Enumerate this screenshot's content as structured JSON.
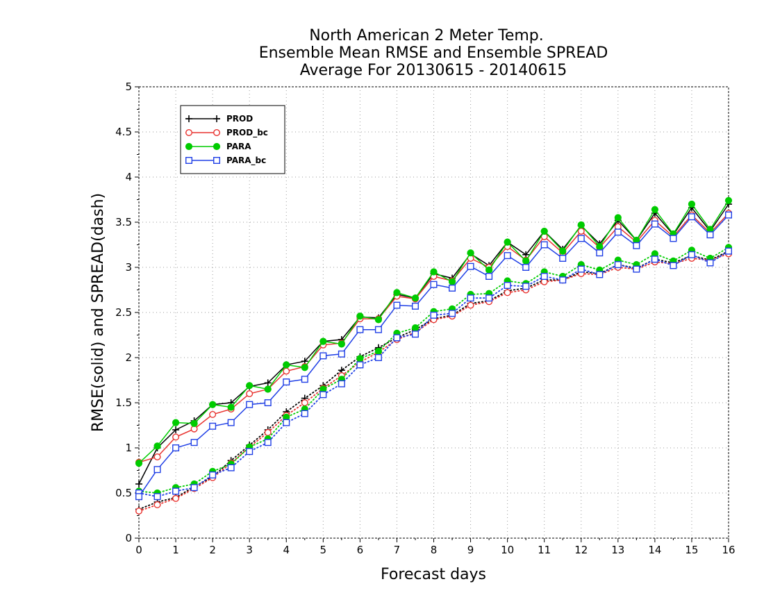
{
  "chart_data": {
    "type": "line",
    "title_lines": [
      "North American 2 Meter Temp.",
      "Ensemble Mean RMSE and Ensemble SPREAD",
      "Average For 20130615 - 20140615"
    ],
    "xlabel": "Forecast days",
    "ylabel": "RMSE(solid) and SPREAD(dash)",
    "xlim": [
      0,
      16
    ],
    "ylim": [
      0,
      5
    ],
    "x_ticks": [
      "0",
      "1",
      "2",
      "3",
      "4",
      "5",
      "6",
      "7",
      "8",
      "9",
      "10",
      "11",
      "12",
      "13",
      "14",
      "15",
      "16"
    ],
    "y_ticks": [
      "0",
      "0.5",
      "1",
      "1.5",
      "2",
      "2.5",
      "3",
      "3.5",
      "4",
      "4.5",
      "5"
    ],
    "grid": true,
    "legend_position": "top-left",
    "x": [
      0,
      0.5,
      1,
      1.5,
      2,
      2.5,
      3,
      3.5,
      4,
      4.5,
      5,
      5.5,
      6,
      6.5,
      7,
      7.5,
      8,
      8.5,
      9,
      9.5,
      10,
      10.5,
      11,
      11.5,
      12,
      12.5,
      13,
      13.5,
      14,
      14.5,
      15,
      15.5,
      16
    ],
    "series": [
      {
        "name": "PROD",
        "color": "#000000",
        "marker": "plus",
        "rmse": [
          0.6,
          1.0,
          1.2,
          1.3,
          1.48,
          1.5,
          1.68,
          1.72,
          1.92,
          1.96,
          2.18,
          2.2,
          2.45,
          2.44,
          2.7,
          2.66,
          2.93,
          2.88,
          3.15,
          3.02,
          3.28,
          3.14,
          3.4,
          3.2,
          3.46,
          3.26,
          3.52,
          3.3,
          3.6,
          3.36,
          3.66,
          3.4,
          3.7
        ],
        "spread": [
          0.32,
          0.4,
          0.45,
          0.57,
          0.68,
          0.86,
          1.03,
          1.2,
          1.4,
          1.55,
          1.69,
          1.86,
          2.01,
          2.11,
          2.22,
          2.31,
          2.43,
          2.47,
          2.6,
          2.63,
          2.74,
          2.77,
          2.86,
          2.86,
          2.95,
          2.93,
          3.03,
          2.99,
          3.09,
          3.05,
          3.13,
          3.08,
          3.18
        ]
      },
      {
        "name": "PROD_bc",
        "color": "#e8322e",
        "marker": "circle",
        "rmse": [
          0.84,
          0.9,
          1.12,
          1.21,
          1.37,
          1.43,
          1.6,
          1.65,
          1.85,
          1.9,
          2.14,
          2.16,
          2.43,
          2.43,
          2.68,
          2.65,
          2.9,
          2.85,
          3.1,
          3.0,
          3.23,
          3.08,
          3.34,
          3.16,
          3.4,
          3.22,
          3.45,
          3.28,
          3.52,
          3.34,
          3.58,
          3.38,
          3.6
        ],
        "spread": [
          0.3,
          0.37,
          0.44,
          0.55,
          0.67,
          0.83,
          1.01,
          1.17,
          1.36,
          1.5,
          1.66,
          1.8,
          1.95,
          2.06,
          2.2,
          2.28,
          2.42,
          2.46,
          2.58,
          2.62,
          2.72,
          2.75,
          2.84,
          2.86,
          2.93,
          2.92,
          3.0,
          2.98,
          3.06,
          3.04,
          3.1,
          3.08,
          3.15
        ]
      },
      {
        "name": "PARA",
        "color": "#00cc00",
        "marker": "dot",
        "rmse": [
          0.83,
          1.02,
          1.28,
          1.27,
          1.48,
          1.45,
          1.69,
          1.65,
          1.92,
          1.89,
          2.18,
          2.15,
          2.46,
          2.42,
          2.72,
          2.66,
          2.95,
          2.84,
          3.16,
          2.97,
          3.28,
          3.07,
          3.4,
          3.18,
          3.47,
          3.23,
          3.55,
          3.3,
          3.64,
          3.37,
          3.7,
          3.42,
          3.74
        ],
        "spread": [
          0.52,
          0.5,
          0.56,
          0.6,
          0.74,
          0.82,
          1.01,
          1.1,
          1.34,
          1.43,
          1.65,
          1.76,
          1.99,
          2.07,
          2.27,
          2.33,
          2.51,
          2.54,
          2.7,
          2.71,
          2.85,
          2.82,
          2.95,
          2.9,
          3.03,
          2.97,
          3.08,
          3.03,
          3.15,
          3.07,
          3.19,
          3.1,
          3.22
        ]
      },
      {
        "name": "PARA_bc",
        "color": "#1f3fe6",
        "marker": "square",
        "rmse": [
          0.46,
          0.76,
          1.0,
          1.06,
          1.24,
          1.28,
          1.48,
          1.5,
          1.73,
          1.76,
          2.02,
          2.04,
          2.31,
          2.31,
          2.58,
          2.57,
          2.81,
          2.77,
          3.01,
          2.9,
          3.13,
          3.0,
          3.25,
          3.1,
          3.32,
          3.16,
          3.39,
          3.24,
          3.48,
          3.32,
          3.56,
          3.36,
          3.58
        ],
        "spread": [
          0.5,
          0.46,
          0.52,
          0.56,
          0.7,
          0.78,
          0.96,
          1.06,
          1.28,
          1.38,
          1.59,
          1.71,
          1.92,
          2.0,
          2.22,
          2.26,
          2.47,
          2.49,
          2.66,
          2.66,
          2.8,
          2.79,
          2.9,
          2.86,
          2.98,
          2.92,
          3.03,
          2.98,
          3.09,
          3.02,
          3.14,
          3.05,
          3.18
        ]
      }
    ]
  }
}
